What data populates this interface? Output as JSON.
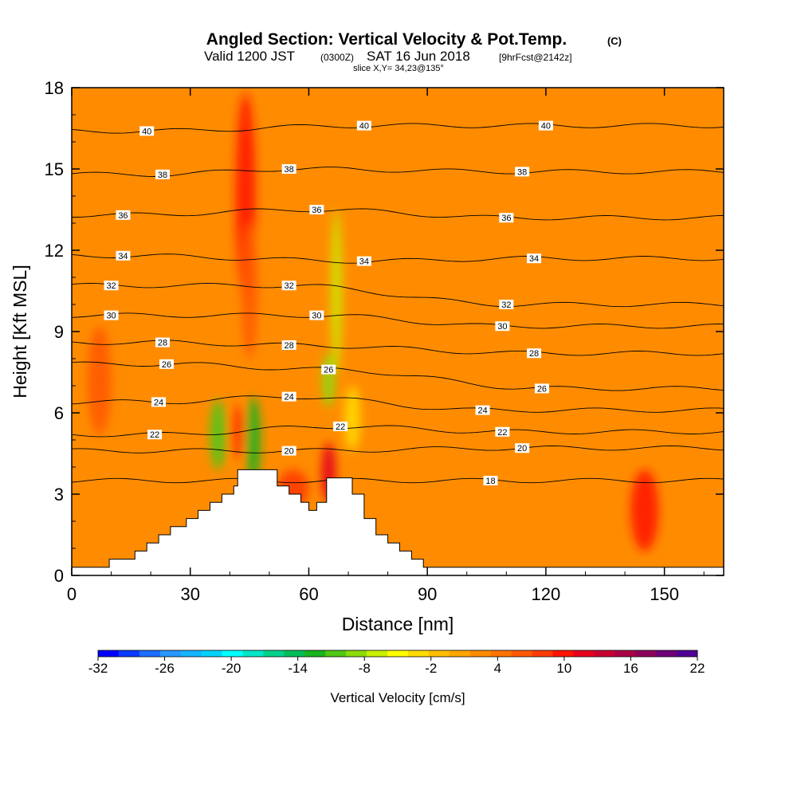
{
  "title": "Angled Section: Vertical Velocity & Pot.Temp.",
  "title_units": "(C)",
  "subtitle_prefix": "Valid 1200 JST",
  "subtitle_utc": "(0300Z)",
  "subtitle_date": "SAT 16 Jun 2018",
  "subtitle_fcst": "[9hrFcst@2142z]",
  "slice_label": "slice X,Y= 34,23@135°",
  "colorbar": {
    "label": "Vertical Velocity [cm/s]",
    "tick_labels": [
      "-32",
      "-26",
      "-20",
      "-14",
      "-8",
      "-2",
      "4",
      "10",
      "16",
      "22"
    ],
    "colors": [
      "#0000ff",
      "#0a3cff",
      "#1e6eff",
      "#2896ff",
      "#14b4ff",
      "#00d2ff",
      "#00ffff",
      "#00e6c8",
      "#00d28c",
      "#00be5a",
      "#19b41e",
      "#50c814",
      "#8cdc0a",
      "#c8f000",
      "#ffff00",
      "#ffdc00",
      "#ffbe00",
      "#ffa500",
      "#ff8c00",
      "#ff7300",
      "#ff5a00",
      "#ff3c00",
      "#ff1400",
      "#e6001e",
      "#c80032",
      "#aa0046",
      "#8c005a",
      "#6e0078",
      "#500096"
    ]
  },
  "chart_data": {
    "type": "heatmap",
    "xlabel": "Distance [nm]",
    "ylabel": "Height [Kft MSL]",
    "xlim": [
      0,
      165
    ],
    "ylim": [
      0,
      18
    ],
    "x_ticks": [
      0,
      30,
      60,
      90,
      120,
      150
    ],
    "y_ticks": [
      0,
      3,
      6,
      9,
      12,
      15,
      18
    ],
    "terrain": [
      [
        0,
        0.3
      ],
      [
        9.5,
        0.3
      ],
      [
        9.5,
        0.6
      ],
      [
        16,
        0.6
      ],
      [
        16,
        0.9
      ],
      [
        19,
        0.9
      ],
      [
        19,
        1.2
      ],
      [
        22,
        1.2
      ],
      [
        22,
        1.5
      ],
      [
        25,
        1.5
      ],
      [
        25,
        1.8
      ],
      [
        29,
        1.8
      ],
      [
        29,
        2.1
      ],
      [
        32,
        2.1
      ],
      [
        32,
        2.4
      ],
      [
        35,
        2.4
      ],
      [
        35,
        2.7
      ],
      [
        38,
        2.7
      ],
      [
        38,
        3.0
      ],
      [
        41,
        3.0
      ],
      [
        41,
        3.3
      ],
      [
        42,
        3.3
      ],
      [
        42,
        3.9
      ],
      [
        52,
        3.9
      ],
      [
        52,
        3.3
      ],
      [
        55,
        3.3
      ],
      [
        55,
        3.0
      ],
      [
        58,
        3.0
      ],
      [
        58,
        2.7
      ],
      [
        60,
        2.7
      ],
      [
        60,
        2.4
      ],
      [
        62,
        2.4
      ],
      [
        62,
        2.7
      ],
      [
        64.5,
        2.7
      ],
      [
        64.5,
        3.6
      ],
      [
        71,
        3.6
      ],
      [
        71,
        3.0
      ],
      [
        74,
        3.0
      ],
      [
        74,
        2.1
      ],
      [
        77,
        2.1
      ],
      [
        77,
        1.5
      ],
      [
        80,
        1.5
      ],
      [
        80,
        1.2
      ],
      [
        83,
        1.2
      ],
      [
        83,
        0.9
      ],
      [
        86,
        0.9
      ],
      [
        86,
        0.6
      ],
      [
        89,
        0.6
      ],
      [
        89,
        0.3
      ],
      [
        165,
        0.3
      ]
    ],
    "theta_contours": [
      {
        "value": 18,
        "labels": [
          [
            106,
            3.5
          ]
        ]
      },
      {
        "value": 20,
        "labels": [
          [
            55,
            4.6
          ],
          [
            114,
            4.7
          ]
        ]
      },
      {
        "value": 22,
        "labels": [
          [
            21,
            5.2
          ],
          [
            68,
            5.5
          ],
          [
            109,
            5.3
          ]
        ]
      },
      {
        "value": 24,
        "labels": [
          [
            22,
            6.4
          ],
          [
            55,
            6.6
          ],
          [
            104,
            6.1
          ]
        ]
      },
      {
        "value": 26,
        "labels": [
          [
            24,
            7.8
          ],
          [
            65,
            7.6
          ],
          [
            119,
            6.9
          ]
        ]
      },
      {
        "value": 28,
        "labels": [
          [
            23,
            8.6
          ],
          [
            55,
            8.5
          ],
          [
            117,
            8.2
          ]
        ]
      },
      {
        "value": 30,
        "labels": [
          [
            10,
            9.6
          ],
          [
            62,
            9.6
          ],
          [
            109,
            9.2
          ]
        ]
      },
      {
        "value": 32,
        "labels": [
          [
            10,
            10.7
          ],
          [
            55,
            10.7
          ],
          [
            110,
            10.0
          ]
        ]
      },
      {
        "value": 34,
        "labels": [
          [
            13,
            11.8
          ],
          [
            74,
            11.6
          ],
          [
            117,
            11.7
          ]
        ]
      },
      {
        "value": 36,
        "labels": [
          [
            13,
            13.3
          ],
          [
            62,
            13.5
          ],
          [
            110,
            13.2
          ]
        ]
      },
      {
        "value": 38,
        "labels": [
          [
            23,
            14.8
          ],
          [
            55,
            15.0
          ],
          [
            114,
            14.9
          ]
        ]
      },
      {
        "value": 40,
        "labels": [
          [
            19,
            16.4
          ],
          [
            74,
            16.6
          ],
          [
            120,
            16.6
          ]
        ]
      }
    ],
    "velocity_features": [
      {
        "kind": "updraft",
        "x": 44,
        "y": 14.0,
        "dx": 2.5,
        "dy": 3.8,
        "cm_s": 10
      },
      {
        "kind": "updraft",
        "x": 45,
        "y": 10.5,
        "dx": 2.0,
        "dy": 2.5,
        "cm_s": 6
      },
      {
        "kind": "updraft",
        "x": 7,
        "y": 7.2,
        "dx": 3.0,
        "dy": 2.0,
        "cm_s": 6
      },
      {
        "kind": "updraft",
        "x": 42,
        "y": 5.3,
        "dx": 1.6,
        "dy": 1.0,
        "cm_s": 8
      },
      {
        "kind": "updraft",
        "x": 65,
        "y": 3.8,
        "dx": 1.8,
        "dy": 1.1,
        "cm_s": 12
      },
      {
        "kind": "updraft",
        "x": 56,
        "y": 3.2,
        "dx": 4.0,
        "dy": 0.7,
        "cm_s": 8
      },
      {
        "kind": "updraft",
        "x": 145,
        "y": 2.4,
        "dx": 3.5,
        "dy": 1.5,
        "cm_s": 10
      },
      {
        "kind": "downdraft",
        "x": 67,
        "y": 10.5,
        "dx": 1.3,
        "dy": 3.0,
        "cm_s": -6
      },
      {
        "kind": "downdraft",
        "x": 65,
        "y": 7.2,
        "dx": 1.6,
        "dy": 1.0,
        "cm_s": -8
      },
      {
        "kind": "downdraft",
        "x": 37,
        "y": 5.2,
        "dx": 2.0,
        "dy": 1.3,
        "cm_s": -10
      },
      {
        "kind": "downdraft",
        "x": 46,
        "y": 5.0,
        "dx": 1.8,
        "dy": 1.6,
        "cm_s": -12
      },
      {
        "kind": "downdraft",
        "x": 71,
        "y": 5.8,
        "dx": 2.0,
        "dy": 1.2,
        "cm_s": -4
      }
    ],
    "background_cm_s": 2
  }
}
